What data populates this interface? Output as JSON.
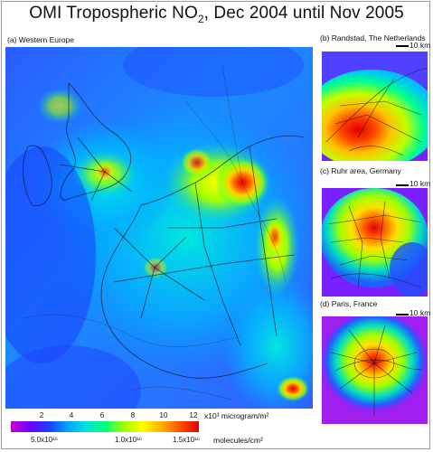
{
  "title": {
    "main": "OMI Tropospheric NO",
    "sub": "2",
    "rest": ", Dec 2004 until Nov 2005"
  },
  "panels": {
    "a": "(a) Western Europe",
    "b": "(b) Randstad, The Netherlands",
    "c": "(c) Ruhr area, Germany",
    "d": "(d) Paris, France"
  },
  "scale_label": "10 km",
  "colorbar": {
    "top_ticks": [
      "2",
      "4",
      "6",
      "8",
      "10",
      "12"
    ],
    "top_unit": "x10³ microgram/m²",
    "bottom_ticks": [
      "5.0x10¹⁵",
      "1.0x10¹⁶",
      "1.5x10¹⁶"
    ],
    "bottom_unit": "molecules/cm²",
    "colors": [
      "#cc00cc",
      "#6a00ff",
      "#1e3cff",
      "#00a0ff",
      "#00e0e0",
      "#00ff80",
      "#a0ff00",
      "#ffff00",
      "#ffb000",
      "#ff5000",
      "#e00000"
    ]
  }
}
